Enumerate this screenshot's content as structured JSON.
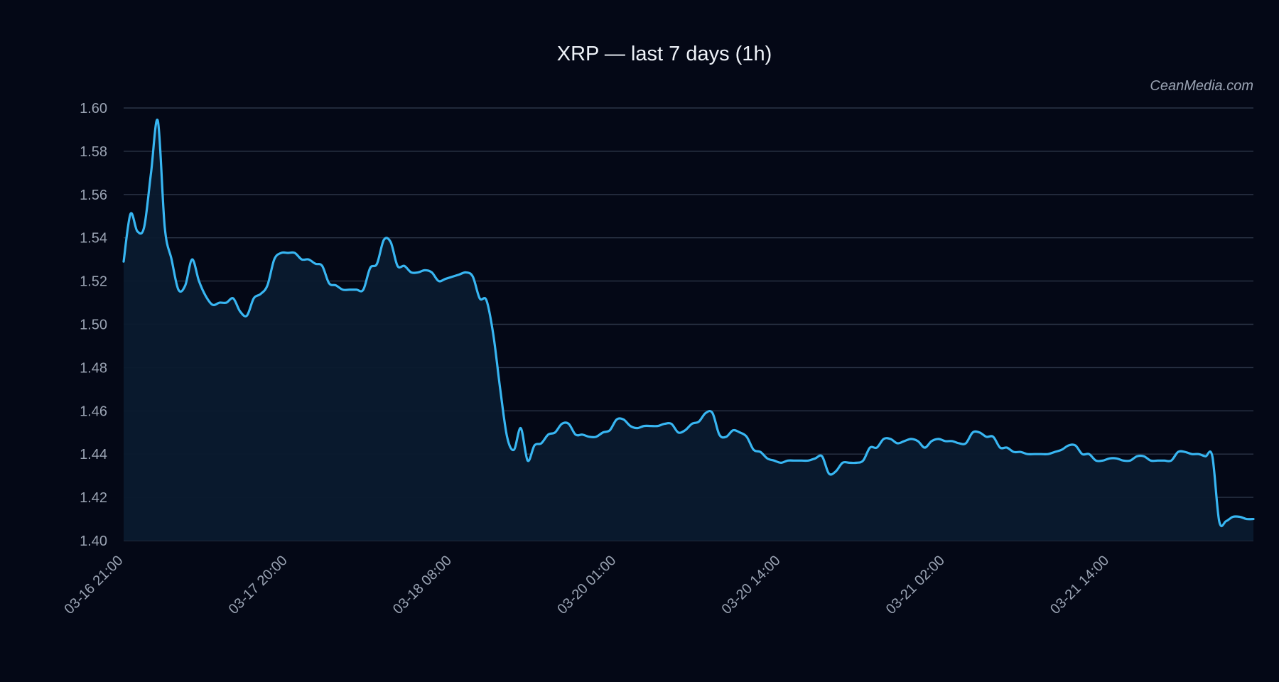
{
  "chart_data": {
    "type": "area",
    "title": "XRP — last 7 days (1h)",
    "watermark": "CeanMedia.com",
    "xlabel": "",
    "ylabel": "",
    "ylim": [
      1.4,
      1.6
    ],
    "y_ticks": [
      "1.40",
      "1.42",
      "1.44",
      "1.46",
      "1.48",
      "1.50",
      "1.52",
      "1.54",
      "1.56",
      "1.58",
      "1.60"
    ],
    "x_ticks": [
      "03-16 21:00",
      "03-17 20:00",
      "03-18 08:00",
      "03-20 01:00",
      "03-20 14:00",
      "03-21 02:00",
      "03-21 14:00"
    ],
    "x_tick_positions": [
      0,
      24,
      48,
      72,
      96,
      120,
      144
    ],
    "grid": true,
    "colors": {
      "line": "#38b6f2",
      "fill": "#0a1a2e",
      "background": "#040816",
      "grid": "#2b3446"
    },
    "series": [
      {
        "values": [
          1.529,
          1.551,
          1.543,
          1.545,
          1.57,
          1.594,
          1.545,
          1.53,
          1.516,
          1.518,
          1.53,
          1.52,
          1.513,
          1.509,
          1.51,
          1.51,
          1.512,
          1.506,
          1.504,
          1.512,
          1.514,
          1.518,
          1.53,
          1.533,
          1.533,
          1.533,
          1.53,
          1.53,
          1.528,
          1.527,
          1.519,
          1.518,
          1.516,
          1.516,
          1.516,
          1.516,
          1.526,
          1.528,
          1.539,
          1.538,
          1.527,
          1.527,
          1.524,
          1.524,
          1.525,
          1.524,
          1.52,
          1.521,
          1.522,
          1.523,
          1.524,
          1.522,
          1.512,
          1.511,
          1.495,
          1.47,
          1.448,
          1.442,
          1.452,
          1.437,
          1.444,
          1.445,
          1.449,
          1.45,
          1.454,
          1.454,
          1.449,
          1.449,
          1.448,
          1.448,
          1.45,
          1.451,
          1.456,
          1.456,
          1.453,
          1.452,
          1.453,
          1.453,
          1.453,
          1.454,
          1.454,
          1.45,
          1.451,
          1.454,
          1.455,
          1.459,
          1.459,
          1.449,
          1.448,
          1.451,
          1.45,
          1.448,
          1.442,
          1.441,
          1.438,
          1.437,
          1.436,
          1.437,
          1.437,
          1.437,
          1.437,
          1.438,
          1.439,
          1.431,
          1.432,
          1.436,
          1.436,
          1.436,
          1.437,
          1.443,
          1.443,
          1.447,
          1.447,
          1.445,
          1.446,
          1.447,
          1.446,
          1.443,
          1.446,
          1.447,
          1.446,
          1.446,
          1.445,
          1.445,
          1.45,
          1.45,
          1.448,
          1.448,
          1.443,
          1.443,
          1.441,
          1.441,
          1.44,
          1.44,
          1.44,
          1.44,
          1.441,
          1.442,
          1.444,
          1.444,
          1.44,
          1.44,
          1.437,
          1.437,
          1.438,
          1.438,
          1.437,
          1.437,
          1.439,
          1.439,
          1.437,
          1.437,
          1.437,
          1.437,
          1.441,
          1.441,
          1.44,
          1.44,
          1.439,
          1.439,
          1.409,
          1.409,
          1.411,
          1.411,
          1.41,
          1.41
        ]
      }
    ]
  }
}
